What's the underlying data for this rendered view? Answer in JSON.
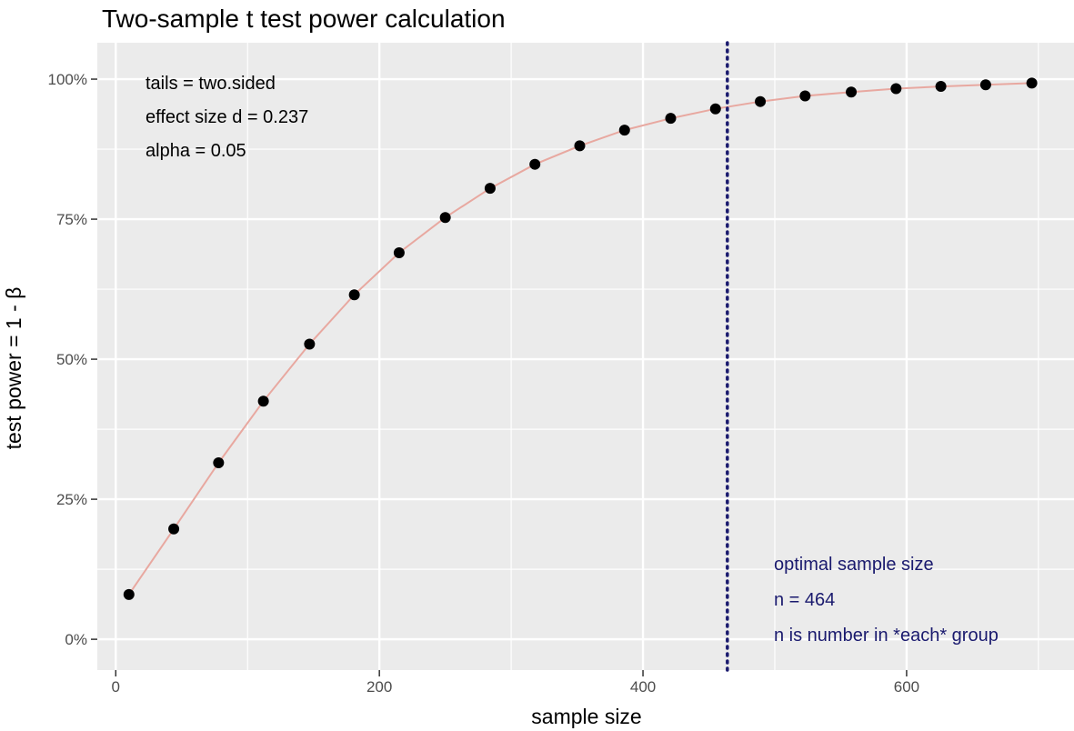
{
  "chart_data": {
    "type": "scatter",
    "title": "Two-sample t test power calculation",
    "xlabel": "sample size",
    "ylabel": "test power = 1 - β",
    "xlim": [
      -14,
      727
    ],
    "ylim": [
      -0.055,
      1.065
    ],
    "x_ticks": [
      0,
      200,
      400,
      600
    ],
    "x_tick_labels": [
      "0",
      "200",
      "400",
      "600"
    ],
    "y_ticks": [
      0,
      0.25,
      0.5,
      0.75,
      1
    ],
    "y_tick_labels": [
      "0%",
      "25%",
      "50%",
      "75%",
      "100%"
    ],
    "x_minor": [
      100,
      300,
      500,
      700
    ],
    "y_minor": [
      0.125,
      0.375,
      0.625,
      0.875
    ],
    "grid": true,
    "series": [
      {
        "x": [
          10,
          44,
          78,
          112,
          147,
          181,
          215,
          250,
          284,
          318,
          352,
          386,
          421,
          455,
          489,
          523,
          558,
          592,
          626,
          660,
          695
        ],
        "y": [
          0.08,
          0.197,
          0.315,
          0.425,
          0.527,
          0.615,
          0.69,
          0.753,
          0.805,
          0.848,
          0.881,
          0.909,
          0.93,
          0.947,
          0.96,
          0.97,
          0.977,
          0.983,
          0.987,
          0.99,
          0.993
        ]
      }
    ],
    "marker_color": "#000000",
    "line_color": "#e8a8a0",
    "vline": {
      "x": 464,
      "color": "#1a1a6e",
      "style": "dotted"
    },
    "annotations": {
      "params": [
        "tails = two.sided",
        "effect size d = 0.237",
        "alpha = 0.05"
      ],
      "optimal": [
        "optimal sample size",
        "n = 464",
        "n is number in *each* group"
      ]
    },
    "panel_bg": "#ebebeb",
    "grid_color": "#ffffff"
  }
}
